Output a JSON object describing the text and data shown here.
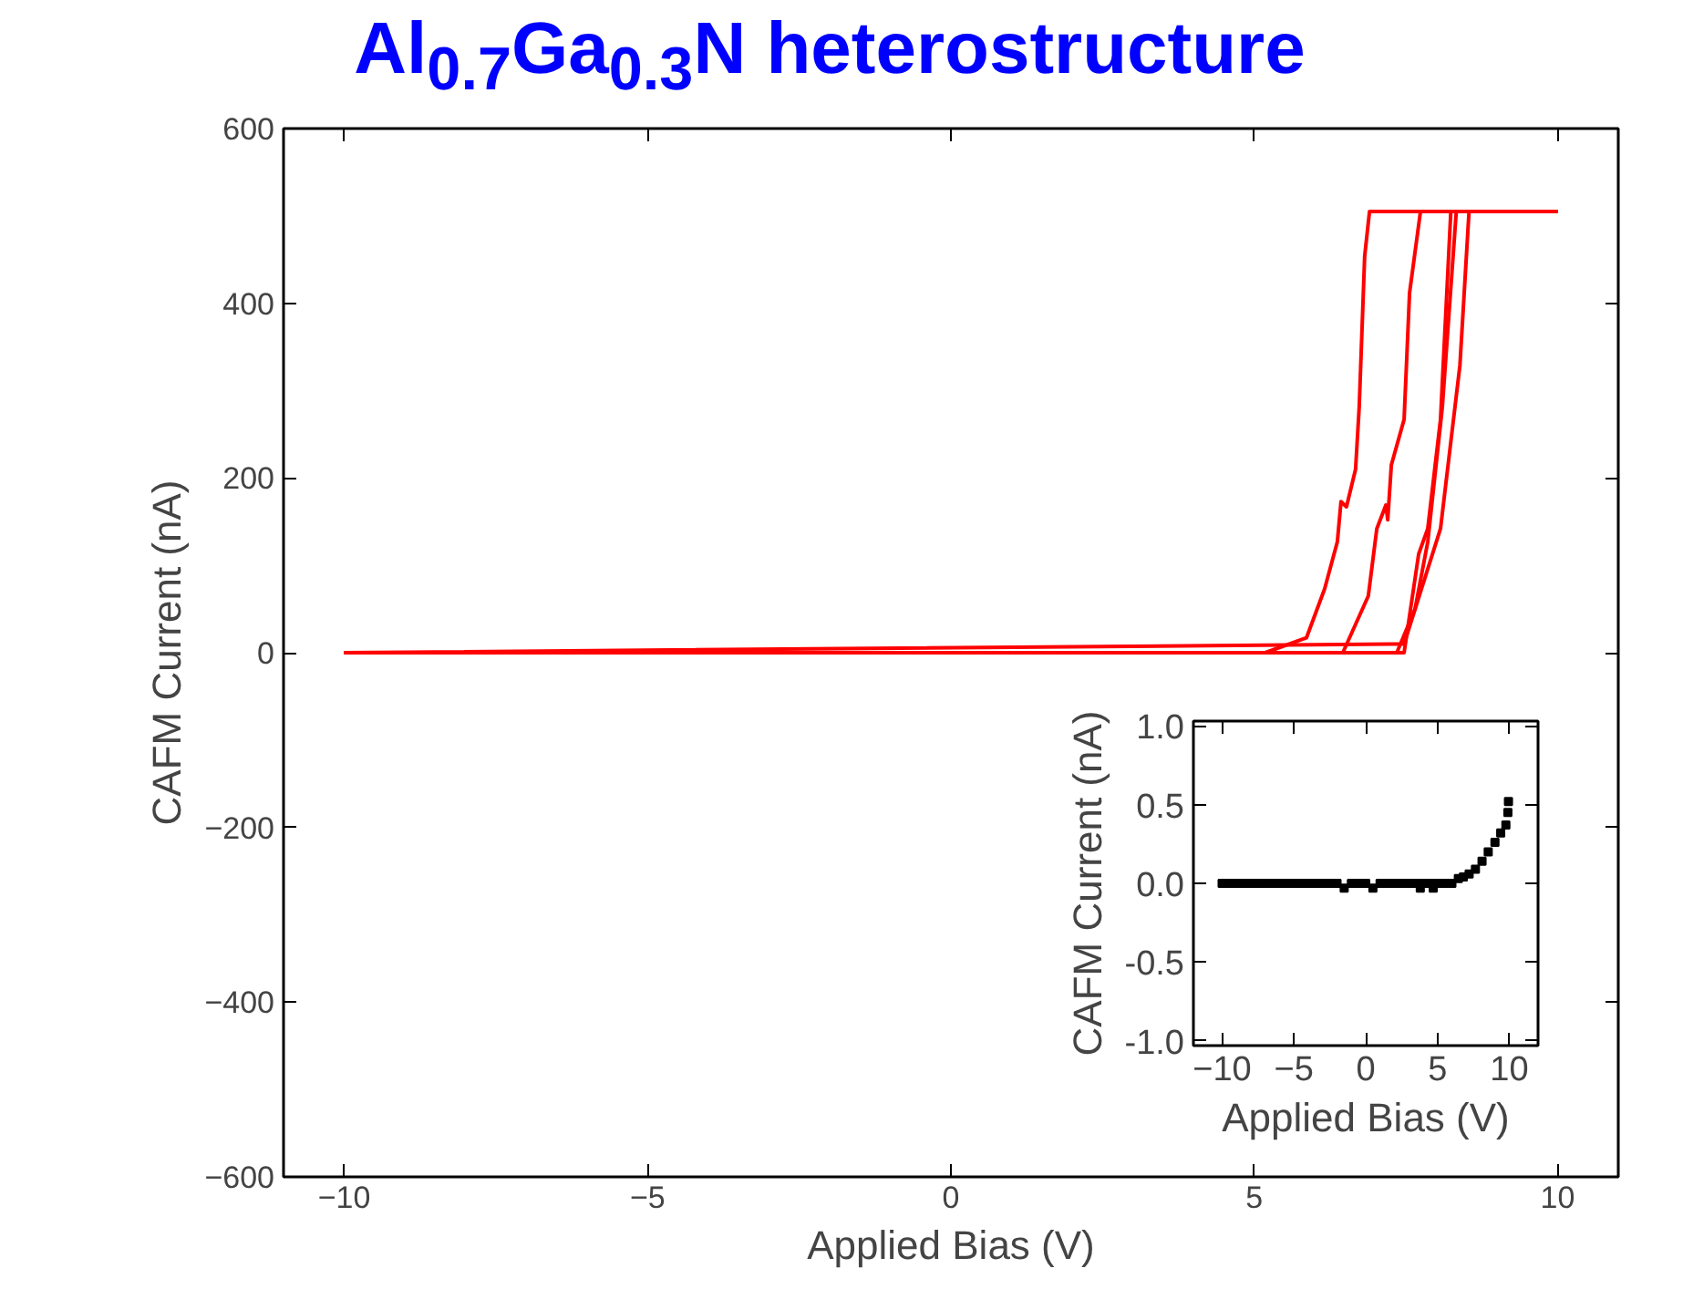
{
  "chart_data": [
    {
      "type": "line",
      "title": "Al$_{0.7}$Ga$_{0.3}$N heterostructure",
      "xlabel": "Applied Bias (V)",
      "ylabel": "CAFM Current (nA)",
      "xlim": [
        -11,
        11
      ],
      "ylim": [
        -600,
        600
      ],
      "xticks": [
        -10,
        -5,
        0,
        5,
        10
      ],
      "yticks": [
        -600,
        -400,
        -200,
        0,
        200,
        400,
        600
      ],
      "grid": false,
      "line_style": "solid",
      "series": [
        {
          "color": "#ff0000",
          "x": [
            -10,
            5.18,
            5.86,
            6.16,
            6.37,
            6.43,
            6.52,
            6.67,
            6.73,
            6.82,
            6.9,
            10
          ],
          "values": [
            0,
            0,
            17,
            73,
            127,
            173,
            167,
            210,
            281,
            454,
            505,
            505
          ]
        },
        {
          "color": "#ff0000",
          "x": [
            -10,
            6.46,
            6.88,
            7.02,
            7.17,
            7.2,
            7.26,
            7.47,
            7.56,
            7.74,
            10
          ],
          "values": [
            0,
            0,
            65,
            142,
            169,
            152,
            215,
            267,
            412,
            505,
            505
          ]
        },
        {
          "color": "#ff0000",
          "x": [
            -10,
            7.47,
            7.71,
            7.86,
            8.07,
            8.24,
            10
          ],
          "values": [
            0,
            0,
            113,
            142,
            267,
            505,
            505
          ]
        },
        {
          "color": "#ff0000",
          "x": [
            -10,
            7.35,
            7.65,
            7.86,
            8.1,
            8.33,
            10
          ],
          "values": [
            0,
            0,
            50,
            127,
            281,
            505,
            505
          ]
        },
        {
          "color": "#ff0000",
          "x": [
            -10,
            7.47,
            8.07,
            8.39,
            8.54,
            10
          ],
          "values": [
            0,
            10,
            142,
            329,
            505,
            505
          ]
        }
      ]
    },
    {
      "type": "scatter",
      "xlabel": "Applied Bias (V)",
      "ylabel": "CAFM Current (nA)",
      "marker": "square",
      "xlim": [
        -12,
        12
      ],
      "ylim": [
        -1.03,
        1.03
      ],
      "xticks": [
        -10,
        -5,
        0,
        5,
        10
      ],
      "yticks": [
        {
          "value": -1,
          "label": "-1.0"
        },
        {
          "value": -0.5,
          "label": "-0.5"
        },
        {
          "value": 0,
          "label": "0.0"
        },
        {
          "value": 0.5,
          "label": "0.5"
        },
        {
          "value": 1,
          "label": "1.0"
        }
      ],
      "grid": false,
      "series": [
        {
          "color": "#000000",
          "x": [
            -10,
            -9.5,
            -9,
            -8.5,
            -8,
            -7.5,
            -7,
            -6.5,
            -6,
            -5.5,
            -5,
            -4.5,
            -4,
            -3.5,
            -3,
            -2.5,
            -2,
            -1.5,
            -1,
            -0.5,
            0,
            0.5,
            1,
            1.5,
            2,
            2.5,
            3,
            3.5,
            3.8,
            4,
            4.5,
            4.7,
            5,
            5.5,
            6,
            6.45,
            6.8,
            7.2,
            7.64,
            8.1,
            8.53,
            9,
            9.4,
            9.76,
            9.9,
            9.94
          ],
          "values": [
            0,
            0,
            0,
            0,
            0,
            0,
            0,
            0,
            0,
            0,
            0,
            0,
            0,
            0,
            0,
            0,
            0,
            -0.03,
            0,
            0,
            0,
            -0.03,
            0,
            0,
            0,
            0,
            0,
            0,
            -0.03,
            0,
            0,
            -0.03,
            0,
            0,
            0,
            0.03,
            0.04,
            0.06,
            0.09,
            0.14,
            0.2,
            0.26,
            0.32,
            0.37,
            0.45,
            0.52
          ]
        }
      ]
    }
  ]
}
